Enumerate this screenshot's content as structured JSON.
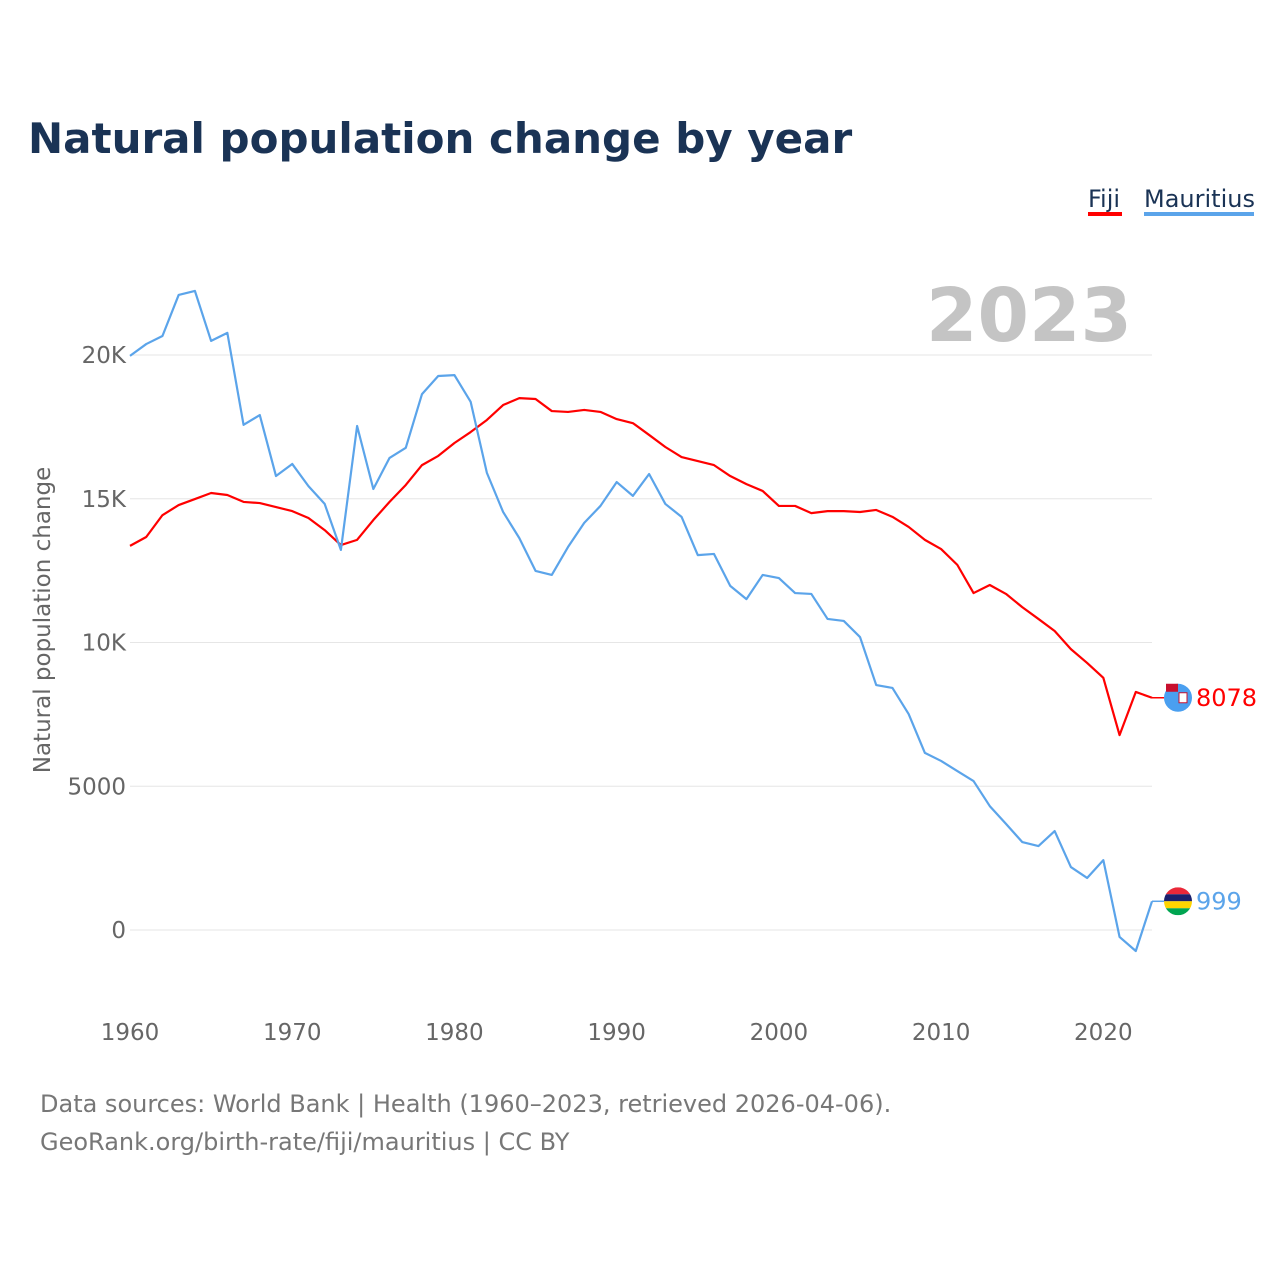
{
  "chart_data": {
    "type": "line",
    "title": "Natural population change by year",
    "xlabel": "",
    "ylabel": "Natural population change",
    "xlim": [
      1960,
      2023
    ],
    "ylim": [
      -1500,
      23000
    ],
    "x_ticks": [
      1960,
      1970,
      1980,
      1990,
      2000,
      2010,
      2020
    ],
    "y_ticks": [
      0,
      5000,
      10000,
      15000,
      20000
    ],
    "y_tick_labels": [
      "0",
      "5000",
      "10K",
      "15K",
      "20K"
    ],
    "x_tick_labels": [
      "1960",
      "1970",
      "1980",
      "1990",
      "2000",
      "2010",
      "2020"
    ],
    "grid": true,
    "legend_position": "top-right",
    "current_year_label": "2023",
    "x": [
      1960,
      1961,
      1962,
      1963,
      1964,
      1965,
      1966,
      1967,
      1968,
      1969,
      1970,
      1971,
      1972,
      1973,
      1974,
      1975,
      1976,
      1977,
      1978,
      1979,
      1980,
      1981,
      1982,
      1983,
      1984,
      1985,
      1986,
      1987,
      1988,
      1989,
      1990,
      1991,
      1992,
      1993,
      1994,
      1995,
      1996,
      1997,
      1998,
      1999,
      2000,
      2001,
      2002,
      2003,
      2004,
      2005,
      2006,
      2007,
      2008,
      2009,
      2010,
      2011,
      2012,
      2013,
      2014,
      2015,
      2016,
      2017,
      2018,
      2019,
      2020,
      2021,
      2022,
      2023
    ],
    "series": [
      {
        "name": "Fiji",
        "color": "#ff0000",
        "end_label": "8078",
        "values": [
          13360,
          13670,
          14430,
          14780,
          14990,
          15200,
          15130,
          14890,
          14850,
          14710,
          14570,
          14330,
          13910,
          13390,
          13570,
          14260,
          14890,
          15480,
          16170,
          16490,
          16940,
          17320,
          17740,
          18260,
          18500,
          18470,
          18050,
          18020,
          18090,
          18020,
          17770,
          17630,
          17220,
          16800,
          16450,
          16310,
          16170,
          15790,
          15510,
          15270,
          14750,
          14750,
          14500,
          14570,
          14570,
          14540,
          14610,
          14370,
          14020,
          13570,
          13250,
          12700,
          11720,
          12000,
          11690,
          11230,
          10820,
          10400,
          9770,
          9290,
          8770,
          6780,
          8280,
          8078
        ]
      },
      {
        "name": "Mauritius",
        "color": "#5ba4ea",
        "end_label": "999",
        "values": [
          19970,
          20380,
          20660,
          22090,
          22230,
          20490,
          20770,
          17570,
          17910,
          15790,
          16210,
          15440,
          14820,
          13220,
          17530,
          15340,
          16420,
          16770,
          18640,
          19270,
          19300,
          18370,
          15900,
          14540,
          13630,
          12490,
          12350,
          13320,
          14160,
          14750,
          15580,
          15100,
          15860,
          14820,
          14370,
          13040,
          13080,
          11970,
          11510,
          12350,
          12240,
          11720,
          11690,
          10820,
          10750,
          10190,
          8520,
          8420,
          7510,
          6160,
          5880,
          5530,
          5180,
          4310,
          3690,
          3060,
          2920,
          3440,
          2190,
          1810,
          2430,
          -240,
          -730,
          999
        ]
      }
    ]
  },
  "footer": {
    "line1": "Data sources: World Bank | Health (1960–2023, retrieved 2026-04-06).",
    "line2": "GeoRank.org/birth-rate/fiji/mauritius | CC BY"
  }
}
